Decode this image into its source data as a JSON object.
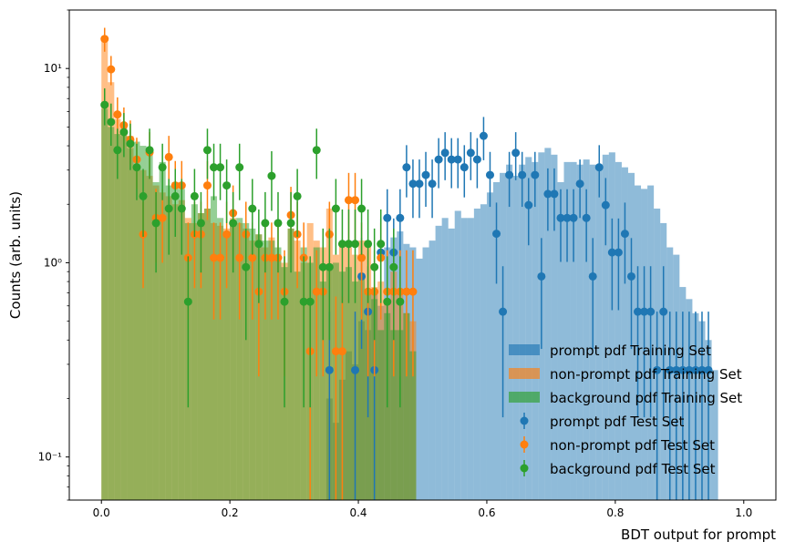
{
  "chart_data": {
    "type": "histogram",
    "xlabel": "BDT output for prompt",
    "ylabel": "Counts (arb. units)",
    "xlim": [
      -0.05,
      1.05
    ],
    "ylim": [
      0.06,
      20
    ],
    "yscale": "log",
    "x_ticks": [
      0.0,
      0.2,
      0.4,
      0.6,
      0.8,
      1.0
    ],
    "x_tick_labels": [
      "0.0",
      "0.2",
      "0.4",
      "0.6",
      "0.8",
      "1.0"
    ],
    "y_ticks": [
      0.1,
      1,
      10
    ],
    "y_tick_labels": [
      "10⁻¹",
      "10⁰",
      "10¹"
    ],
    "legend_position": "lower-right",
    "bin_width": 0.01,
    "series": [
      {
        "name": "prompt pdf Training Set",
        "kind": "hist",
        "color": "#1f77b4",
        "opacity": 0.5,
        "bins_left": [
          0.35,
          0.36,
          0.37,
          0.38,
          0.39,
          0.4,
          0.41,
          0.42,
          0.43,
          0.44,
          0.45,
          0.46,
          0.47,
          0.48,
          0.49,
          0.5,
          0.51,
          0.52,
          0.53,
          0.54,
          0.55,
          0.56,
          0.57,
          0.58,
          0.59,
          0.6,
          0.61,
          0.62,
          0.63,
          0.64,
          0.65,
          0.66,
          0.67,
          0.68,
          0.69,
          0.7,
          0.71,
          0.72,
          0.73,
          0.74,
          0.75,
          0.76,
          0.77,
          0.78,
          0.79,
          0.8,
          0.81,
          0.82,
          0.83,
          0.84,
          0.85,
          0.86,
          0.87,
          0.88,
          0.89,
          0.9,
          0.91,
          0.92,
          0.93,
          0.94,
          0.95
        ],
        "values": [
          0.2,
          0.15,
          0.25,
          0.35,
          0.3,
          0.5,
          0.45,
          0.7,
          0.6,
          1.2,
          1.35,
          1.45,
          1.25,
          1.2,
          1.05,
          1.2,
          1.3,
          1.55,
          1.7,
          1.5,
          1.85,
          1.7,
          1.7,
          1.9,
          2.0,
          2.3,
          2.6,
          2.9,
          3.2,
          2.8,
          3.2,
          3.5,
          3.3,
          3.7,
          3.9,
          3.6,
          2.6,
          3.3,
          3.3,
          3.2,
          3.4,
          3.2,
          3.2,
          3.6,
          3.7,
          3.3,
          3.1,
          2.9,
          2.5,
          2.4,
          2.5,
          1.9,
          1.6,
          1.2,
          1.1,
          0.75,
          0.65,
          0.55,
          0.5,
          0.4,
          0.28
        ]
      },
      {
        "name": "non-prompt pdf Training Set",
        "kind": "hist",
        "color": "#ff7f0e",
        "opacity": 0.5,
        "bins_left": [
          0.0,
          0.01,
          0.02,
          0.03,
          0.04,
          0.05,
          0.06,
          0.07,
          0.08,
          0.09,
          0.1,
          0.11,
          0.12,
          0.13,
          0.14,
          0.15,
          0.16,
          0.17,
          0.18,
          0.19,
          0.2,
          0.21,
          0.22,
          0.23,
          0.24,
          0.25,
          0.26,
          0.27,
          0.28,
          0.29,
          0.3,
          0.31,
          0.32,
          0.33,
          0.34,
          0.35,
          0.36,
          0.37,
          0.38,
          0.39,
          0.4,
          0.41,
          0.42,
          0.43,
          0.44,
          0.45,
          0.46,
          0.47,
          0.48
        ],
        "values": [
          14,
          8.5,
          5.5,
          5.0,
          4.5,
          3.2,
          3.0,
          2.8,
          2.5,
          2.3,
          2.2,
          2.0,
          2.1,
          1.7,
          1.6,
          1.8,
          1.9,
          1.6,
          1.55,
          1.5,
          1.7,
          1.6,
          1.5,
          1.3,
          1.4,
          1.2,
          1.35,
          1.1,
          1.0,
          1.5,
          1.3,
          1.0,
          1.6,
          1.3,
          1.2,
          1.9,
          1.1,
          1.25,
          1.2,
          1.1,
          1.3,
          1.3,
          0.75,
          0.8,
          0.65,
          0.9,
          0.7,
          0.55,
          0.5
        ]
      },
      {
        "name": "background pdf Training Set",
        "kind": "hist",
        "color": "#2ca02c",
        "opacity": 0.5,
        "bins_left": [
          0.0,
          0.01,
          0.02,
          0.03,
          0.04,
          0.05,
          0.06,
          0.07,
          0.08,
          0.09,
          0.1,
          0.11,
          0.12,
          0.13,
          0.14,
          0.15,
          0.16,
          0.17,
          0.18,
          0.19,
          0.2,
          0.21,
          0.22,
          0.23,
          0.24,
          0.25,
          0.26,
          0.27,
          0.28,
          0.29,
          0.3,
          0.31,
          0.32,
          0.33,
          0.34,
          0.35,
          0.36,
          0.37,
          0.38,
          0.39,
          0.4,
          0.41,
          0.42,
          0.43,
          0.44,
          0.45,
          0.46,
          0.47,
          0.48
        ],
        "values": [
          6.2,
          5.0,
          4.6,
          4.5,
          3.9,
          4.2,
          4.0,
          3.7,
          2.6,
          3.3,
          2.5,
          2.6,
          2.4,
          1.6,
          2.0,
          1.8,
          1.9,
          2.2,
          1.7,
          1.4,
          1.6,
          1.7,
          1.6,
          1.5,
          1.4,
          1.3,
          1.3,
          1.2,
          0.95,
          1.5,
          0.9,
          1.2,
          1.0,
          1.2,
          0.8,
          0.95,
          1.0,
          0.9,
          0.95,
          0.8,
          0.85,
          0.7,
          0.65,
          0.45,
          0.55,
          0.45,
          0.45,
          0.55,
          0.35
        ]
      },
      {
        "name": "prompt pdf Test Set",
        "kind": "errorbar",
        "color": "#1f77b4",
        "x": [
          0.355,
          0.395,
          0.405,
          0.415,
          0.425,
          0.435,
          0.445,
          0.455,
          0.465,
          0.475,
          0.485,
          0.495,
          0.505,
          0.515,
          0.525,
          0.535,
          0.545,
          0.555,
          0.565,
          0.575,
          0.585,
          0.595,
          0.605,
          0.615,
          0.625,
          0.635,
          0.645,
          0.655,
          0.665,
          0.675,
          0.685,
          0.695,
          0.705,
          0.715,
          0.725,
          0.735,
          0.745,
          0.755,
          0.765,
          0.775,
          0.785,
          0.795,
          0.805,
          0.815,
          0.825,
          0.835,
          0.845,
          0.855,
          0.865,
          0.875,
          0.885,
          0.895,
          0.905,
          0.915,
          0.925,
          0.935,
          0.945
        ],
        "y": [
          0.28,
          0.28,
          0.85,
          0.56,
          0.28,
          1.13,
          1.7,
          1.13,
          1.7,
          3.1,
          2.55,
          2.55,
          2.83,
          2.55,
          3.4,
          3.68,
          3.4,
          3.4,
          3.1,
          3.68,
          3.4,
          4.5,
          2.83,
          1.41,
          0.56,
          2.83,
          3.68,
          2.83,
          1.98,
          2.83,
          0.85,
          2.26,
          2.26,
          1.7,
          1.7,
          1.7,
          2.55,
          1.7,
          0.85,
          3.1,
          1.98,
          1.13,
          1.13,
          1.41,
          0.85,
          0.56,
          0.56,
          0.56,
          0.28,
          0.56,
          0.28,
          0.28,
          0.28,
          0.28,
          0.28,
          0.28,
          0.28
        ],
        "yerr": [
          0.28,
          0.28,
          0.49,
          0.4,
          0.28,
          0.56,
          0.69,
          0.56,
          0.69,
          0.93,
          0.85,
          0.85,
          0.89,
          0.85,
          0.98,
          1.02,
          0.98,
          0.98,
          0.93,
          1.02,
          0.98,
          1.13,
          0.89,
          0.63,
          0.4,
          0.89,
          1.02,
          0.89,
          0.75,
          0.89,
          0.49,
          0.8,
          0.8,
          0.69,
          0.69,
          0.69,
          0.85,
          0.69,
          0.49,
          0.93,
          0.75,
          0.56,
          0.56,
          0.63,
          0.49,
          0.4,
          0.4,
          0.4,
          0.28,
          0.4,
          0.28,
          0.28,
          0.28,
          0.28,
          0.28,
          0.28,
          0.28
        ]
      },
      {
        "name": "non-prompt pdf Test Set",
        "kind": "errorbar",
        "color": "#ff7f0e",
        "x": [
          0.005,
          0.015,
          0.025,
          0.035,
          0.045,
          0.055,
          0.065,
          0.075,
          0.085,
          0.095,
          0.105,
          0.115,
          0.125,
          0.135,
          0.145,
          0.155,
          0.165,
          0.175,
          0.185,
          0.195,
          0.205,
          0.215,
          0.225,
          0.235,
          0.245,
          0.255,
          0.265,
          0.275,
          0.285,
          0.295,
          0.305,
          0.315,
          0.325,
          0.335,
          0.345,
          0.355,
          0.365,
          0.375,
          0.385,
          0.395,
          0.405,
          0.415,
          0.425,
          0.435,
          0.445,
          0.455,
          0.465,
          0.475,
          0.485
        ],
        "y": [
          14.2,
          9.9,
          5.8,
          5.1,
          4.3,
          3.4,
          1.4,
          3.7,
          1.7,
          1.7,
          3.5,
          2.5,
          2.5,
          1.06,
          1.4,
          1.4,
          2.5,
          1.06,
          1.06,
          1.4,
          1.8,
          1.06,
          1.4,
          1.06,
          0.71,
          1.06,
          1.06,
          1.06,
          0.71,
          1.76,
          1.4,
          1.06,
          0.35,
          0.71,
          0.71,
          1.4,
          0.35,
          0.35,
          2.1,
          2.1,
          1.06,
          0.71,
          0.71,
          1.06,
          0.71,
          0.71,
          0.71,
          0.71,
          0.71
        ],
        "yerr": [
          2.0,
          1.7,
          1.3,
          1.2,
          1.1,
          1.0,
          0.66,
          1.0,
          0.7,
          0.7,
          1.0,
          0.84,
          0.84,
          0.55,
          0.66,
          0.66,
          0.84,
          0.55,
          0.55,
          0.66,
          0.7,
          0.55,
          0.66,
          0.55,
          0.45,
          0.55,
          0.55,
          0.55,
          0.45,
          0.7,
          0.66,
          0.55,
          0.32,
          0.45,
          0.45,
          0.66,
          0.32,
          0.32,
          0.8,
          0.8,
          0.55,
          0.45,
          0.45,
          0.55,
          0.45,
          0.45,
          0.45,
          0.45,
          0.45
        ]
      },
      {
        "name": "background pdf Test Set",
        "kind": "errorbar",
        "color": "#2ca02c",
        "x": [
          0.005,
          0.015,
          0.025,
          0.035,
          0.045,
          0.055,
          0.065,
          0.075,
          0.085,
          0.095,
          0.105,
          0.115,
          0.125,
          0.135,
          0.145,
          0.155,
          0.165,
          0.175,
          0.185,
          0.195,
          0.205,
          0.215,
          0.225,
          0.235,
          0.245,
          0.255,
          0.265,
          0.275,
          0.285,
          0.295,
          0.305,
          0.315,
          0.325,
          0.335,
          0.345,
          0.355,
          0.365,
          0.375,
          0.385,
          0.395,
          0.405,
          0.415,
          0.425,
          0.435,
          0.445,
          0.455,
          0.465
        ],
        "y": [
          6.5,
          5.3,
          3.8,
          4.7,
          4.1,
          3.1,
          2.2,
          3.8,
          1.6,
          3.1,
          1.9,
          2.2,
          1.9,
          0.63,
          2.2,
          1.6,
          3.8,
          3.1,
          3.1,
          2.5,
          1.6,
          3.1,
          0.95,
          1.9,
          1.25,
          1.6,
          2.8,
          1.6,
          0.63,
          1.6,
          2.2,
          0.63,
          0.63,
          3.8,
          0.95,
          0.95,
          1.9,
          1.25,
          1.25,
          1.25,
          1.9,
          1.25,
          0.95,
          1.25,
          0.63,
          0.95,
          0.63
        ],
        "yerr": [
          1.4,
          1.3,
          1.1,
          1.2,
          1.1,
          1.0,
          0.84,
          1.1,
          0.71,
          1.0,
          0.8,
          0.84,
          0.8,
          0.45,
          0.84,
          0.71,
          1.1,
          1.0,
          1.0,
          0.9,
          0.71,
          1.0,
          0.55,
          0.8,
          0.63,
          0.71,
          0.95,
          0.71,
          0.45,
          0.71,
          0.84,
          0.45,
          0.45,
          1.1,
          0.55,
          0.55,
          0.8,
          0.63,
          0.63,
          0.63,
          0.8,
          0.63,
          0.55,
          0.63,
          0.45,
          0.55,
          0.45
        ]
      }
    ]
  }
}
